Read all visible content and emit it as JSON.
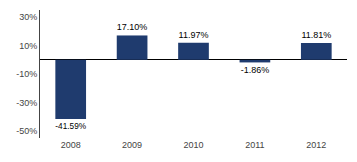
{
  "chart_data": {
    "type": "bar",
    "categories": [
      "2008",
      "2009",
      "2010",
      "2011",
      "2012"
    ],
    "values": [
      -41.59,
      17.1,
      11.97,
      -1.86,
      11.81
    ],
    "value_labels": [
      "-41.59%",
      "17.10%",
      "11.97%",
      "-1.86%",
      "11.81%"
    ],
    "data_labels": true,
    "color": "#1F3B6E",
    "ylim": [
      -55,
      35
    ],
    "yticks": [
      {
        "value": -50,
        "label": "-50%"
      },
      {
        "value": -30,
        "label": "-30%"
      },
      {
        "value": -10,
        "label": "-10%"
      },
      {
        "value": 10,
        "label": "10%"
      },
      {
        "value": 30,
        "label": "30%"
      }
    ],
    "grid": false
  }
}
